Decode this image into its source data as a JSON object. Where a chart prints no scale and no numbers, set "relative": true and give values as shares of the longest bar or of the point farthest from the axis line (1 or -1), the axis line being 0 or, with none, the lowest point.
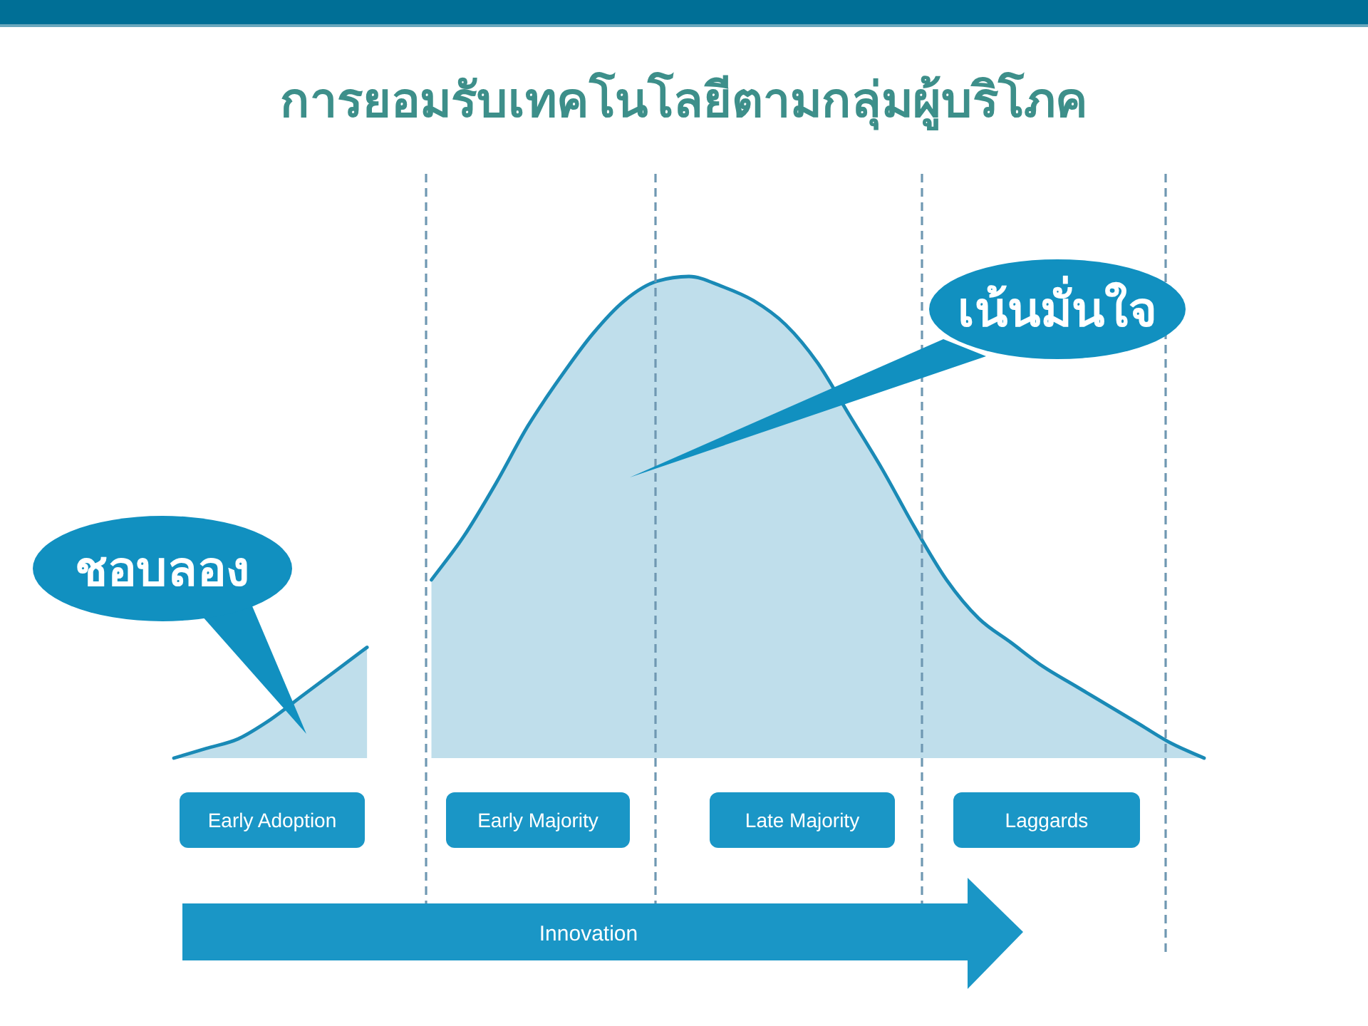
{
  "chart_data": {
    "type": "area",
    "title": "การยอมรับเทคโนโลยีตามกลุ่มผู้บริโภค",
    "relative": true,
    "categories": [
      null,
      null,
      null,
      null,
      null,
      null,
      null,
      null,
      null,
      null,
      null,
      null,
      null,
      null,
      null,
      null,
      null,
      null,
      null,
      null,
      null,
      null,
      null,
      null,
      null,
      null,
      null,
      null,
      null,
      null,
      null,
      null,
      null
    ],
    "values": [
      0,
      0.02,
      0.04,
      0.08,
      0.13,
      0.18,
      0.23,
      null,
      0.37,
      0.46,
      0.57,
      0.69,
      0.79,
      0.88,
      0.95,
      0.99,
      1,
      0.98,
      0.95,
      0.9,
      0.82,
      0.71,
      0.6,
      0.48,
      0.37,
      0.29,
      0.24,
      0.19,
      0.15,
      0.11,
      0.07,
      0.03,
      0
    ],
    "color": "#1a8ab6",
    "annotations": [
      "Early Adoption",
      "Early Majority",
      "Late Majority",
      "Laggards",
      "Innovation",
      "ชอบลอง",
      "เน้นมั่นใจ"
    ]
  }
}
